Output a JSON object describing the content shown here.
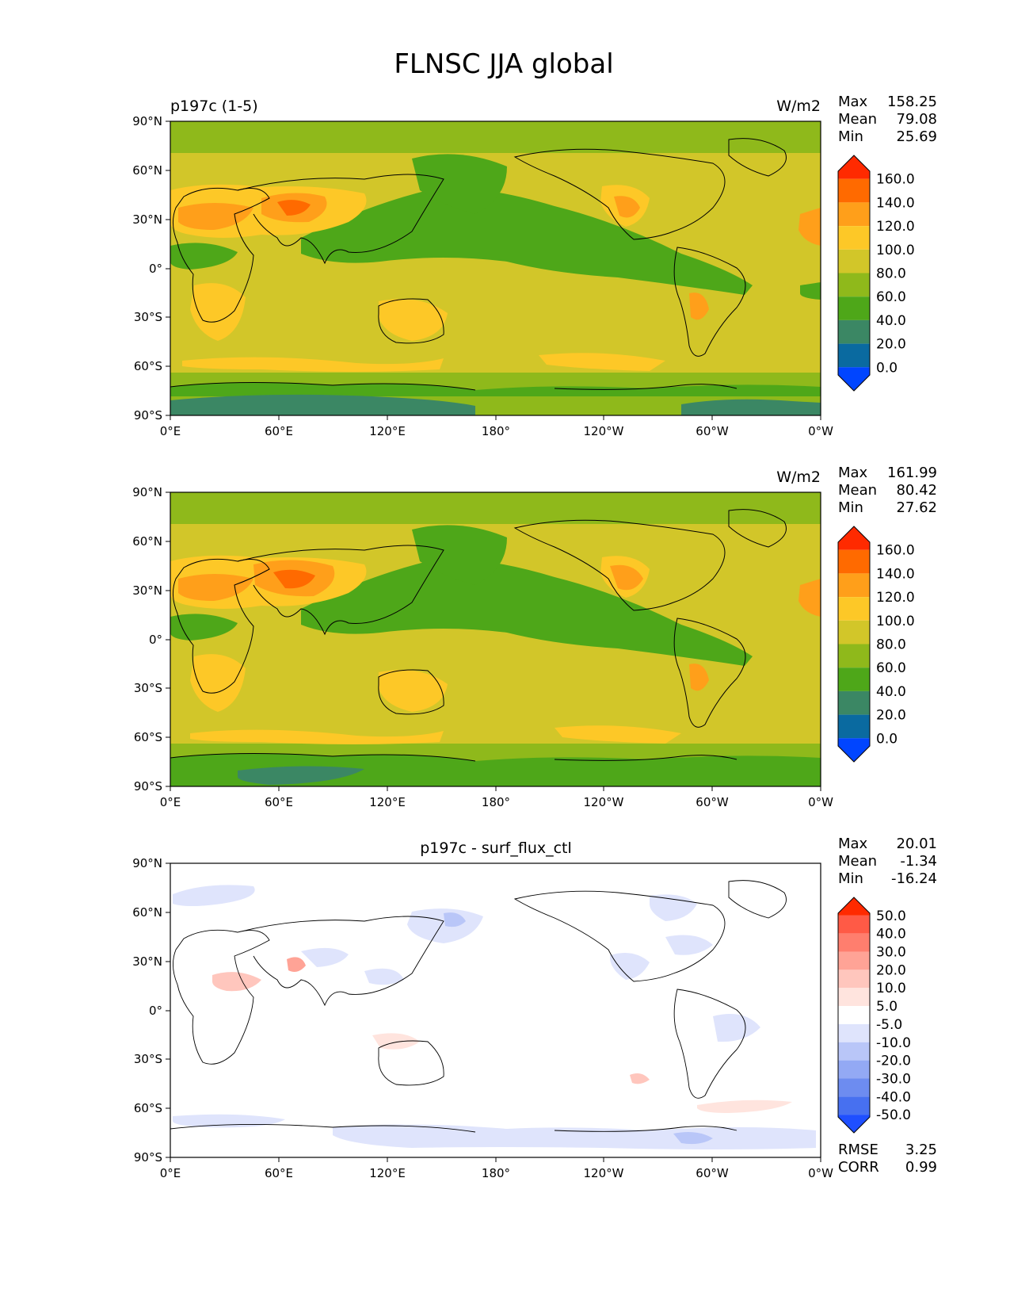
{
  "figure_title": "FLNSC JJA global",
  "lat_ticks": [
    "90°N",
    "60°N",
    "30°N",
    "0°",
    "30°S",
    "60°S",
    "90°S"
  ],
  "lon_ticks": [
    "0°E",
    "60°E",
    "120°E",
    "180°",
    "120°W",
    "60°W",
    "0°W"
  ],
  "panels": [
    {
      "name": "test",
      "left_title": "p197c (1-5)",
      "center_title": "",
      "units": "W/m2",
      "stats": [
        {
          "label": "Max",
          "value": "158.25"
        },
        {
          "label": "Mean",
          "value": "79.08"
        },
        {
          "label": "Min",
          "value": "25.69"
        }
      ],
      "colorbar_labels": [
        "160.0",
        "140.0",
        "120.0",
        "100.0",
        "80.0",
        "60.0",
        "40.0",
        "20.0",
        "0.0"
      ],
      "colorbar_colors": [
        "#ff2a00",
        "#ff6a00",
        "#ff9f1a",
        "#fdc827",
        "#d2c629",
        "#8fb91b",
        "#4ea719",
        "#3b8764",
        "#0a6aa0",
        "#0045ff"
      ]
    },
    {
      "name": "reference",
      "left_title": "",
      "center_title": "",
      "units": "W/m2",
      "stats": [
        {
          "label": "Max",
          "value": "161.99"
        },
        {
          "label": "Mean",
          "value": "80.42"
        },
        {
          "label": "Min",
          "value": "27.62"
        }
      ],
      "colorbar_labels": [
        "160.0",
        "140.0",
        "120.0",
        "100.0",
        "80.0",
        "60.0",
        "40.0",
        "20.0",
        "0.0"
      ],
      "colorbar_colors": [
        "#ff2a00",
        "#ff6a00",
        "#ff9f1a",
        "#fdc827",
        "#d2c629",
        "#8fb91b",
        "#4ea719",
        "#3b8764",
        "#0a6aa0",
        "#0045ff"
      ]
    },
    {
      "name": "difference",
      "left_title": "",
      "center_title": "p197c - surf_flux_ctl",
      "units": "",
      "stats": [
        {
          "label": "Max",
          "value": "20.01"
        },
        {
          "label": "Mean",
          "value": "-1.34"
        },
        {
          "label": "Min",
          "value": "-16.24"
        }
      ],
      "colorbar_labels": [
        "50.0",
        "40.0",
        "30.0",
        "20.0",
        "10.0",
        "5.0",
        "-5.0",
        "-10.0",
        "-20.0",
        "-30.0",
        "-40.0",
        "-50.0"
      ],
      "colorbar_colors": [
        "#ff2a00",
        "#ff5a46",
        "#ff7e6e",
        "#ffa396",
        "#ffc6bd",
        "#ffe4de",
        "#ffffff",
        "#dfe4fc",
        "#b9c6f8",
        "#93a9f4",
        "#6d8cf0",
        "#4770f0",
        "#1f4fff"
      ],
      "footer_stats": [
        {
          "label": "RMSE",
          "value": "3.25"
        },
        {
          "label": "CORR",
          "value": "0.99"
        }
      ]
    }
  ],
  "colors": {
    "test_background": "#d2c629",
    "reference_background": "#d2c629",
    "difference_background": "#ffffff",
    "coastline": "#000000"
  }
}
